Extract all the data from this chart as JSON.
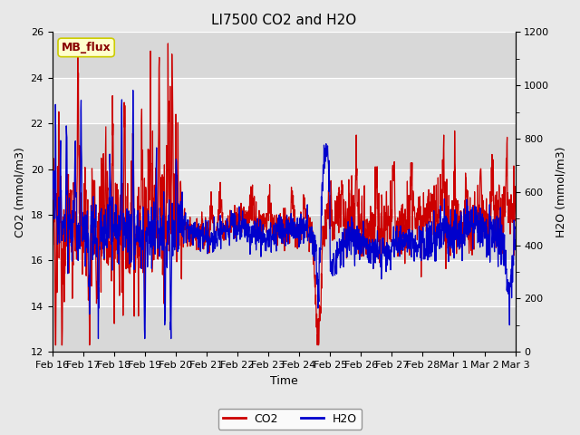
{
  "title": "LI7500 CO2 and H2O",
  "xlabel": "Time",
  "ylabel_left": "CO2 (mmol/m3)",
  "ylabel_right": "H2O (mmol/m3)",
  "co2_color": "#cc0000",
  "h2o_color": "#0000cc",
  "ylim_left": [
    12,
    26
  ],
  "ylim_right": [
    0,
    1200
  ],
  "yticks_left": [
    12,
    14,
    16,
    18,
    20,
    22,
    24,
    26
  ],
  "yticks_right": [
    0,
    200,
    400,
    600,
    800,
    1000,
    1200
  ],
  "xtick_labels": [
    "Feb 16",
    "Feb 17",
    "Feb 18",
    "Feb 19",
    "Feb 20",
    "Feb 21",
    "Feb 22",
    "Feb 23",
    "Feb 24",
    "Feb 25",
    "Feb 26",
    "Feb 27",
    "Feb 28",
    "Mar 1",
    "Mar 2",
    "Mar 3"
  ],
  "annotation_text": "MB_flux",
  "annotation_bg": "#ffffcc",
  "annotation_border": "#cccc00",
  "annotation_text_color": "#880000",
  "fig_bg_color": "#e8e8e8",
  "plot_bg_color": "#e8e8e8",
  "band_light": "#e8e8e8",
  "band_dark": "#d0d0d0",
  "linewidth": 0.9,
  "legend_co2": "CO2",
  "legend_h2o": "H2O"
}
